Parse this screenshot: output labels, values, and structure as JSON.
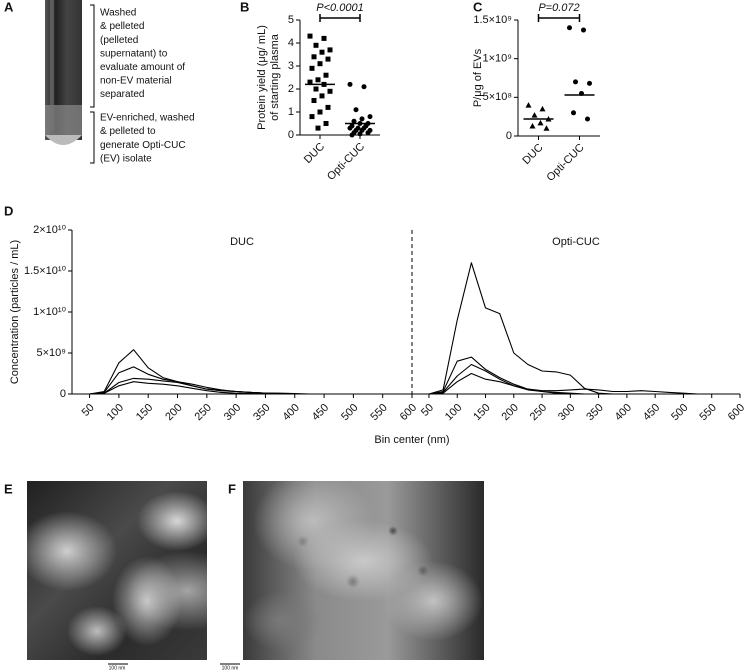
{
  "panel_labels": [
    "A",
    "B",
    "C",
    "D",
    "E",
    "F"
  ],
  "panel_a": {
    "annotations": [
      {
        "lines": [
          "Washed",
          "& pelleted",
          "(pelleted",
          "supernatant) to",
          "evaluate amount of",
          "non-EV material",
          "separated"
        ]
      },
      {
        "lines": [
          "EV-enriched, washed",
          "& pelleted to",
          "generate Opti-CUC",
          "(EV) isolate"
        ]
      }
    ]
  },
  "chart_data": [
    {
      "type": "strip",
      "y_label": [
        "Protein yield (μg/ mL)",
        "of starting plasma"
      ],
      "categories": [
        "DUC",
        "Opti-CUC"
      ],
      "values": [
        [
          4.3,
          4.2,
          3.9,
          3.7,
          3.6,
          3.4,
          3.3,
          3.1,
          2.9,
          2.6,
          2.4,
          2.3,
          2.2,
          2.0,
          1.9,
          1.7,
          1.5,
          1.2,
          1.0,
          0.8,
          0.5,
          0.3
        ],
        [
          2.2,
          2.1,
          1.1,
          0.8,
          0.7,
          0.6,
          0.5,
          0.5,
          0.4,
          0.4,
          0.3,
          0.3,
          0.3,
          0.2,
          0.2,
          0.2,
          0.1,
          0.1,
          0.05,
          0.0
        ]
      ],
      "means": [
        2.2,
        0.5
      ],
      "markers": [
        "square",
        "circle"
      ],
      "color": "#000000",
      "ylim": [
        0,
        5
      ],
      "yticks": [
        0,
        1,
        2,
        3,
        4,
        5
      ],
      "annotation": "P<0.0001"
    },
    {
      "type": "strip",
      "y_label": "P/μg of EVs",
      "categories": [
        "DUC",
        "Opti-CUC"
      ],
      "values": [
        [
          400000000.0,
          350000000.0,
          270000000.0,
          220000000.0,
          170000000.0,
          130000000.0,
          100000000.0
        ],
        [
          1400000000.0,
          1370000000.0,
          700000000.0,
          680000000.0,
          550000000.0,
          300000000.0,
          220000000.0
        ]
      ],
      "means": [
        220000000.0,
        530000000.0
      ],
      "markers": [
        "triangle",
        "circle"
      ],
      "color": "#000000",
      "ylim": [
        0,
        1500000000.0
      ],
      "yticks": [
        0,
        {
          "value": 500000000.0,
          "label": "5×10⁸"
        },
        {
          "value": 1000000000.0,
          "label": "1×10⁹"
        },
        {
          "value": 1500000000.0,
          "label": "1.5×10⁹"
        }
      ],
      "annotation": "P=0.072"
    },
    {
      "type": "line",
      "y_label": "Concentration (particles / mL)",
      "x_label": "Bin center (nm)",
      "x": [
        50,
        75,
        100,
        125,
        150,
        175,
        200,
        225,
        250,
        275,
        300,
        325,
        350,
        375,
        400,
        425,
        450,
        475,
        500,
        525,
        550,
        575,
        600
      ],
      "xlim": [
        20,
        600
      ],
      "xticks": [
        50,
        100,
        150,
        200,
        250,
        300,
        350,
        400,
        450,
        500,
        550,
        600
      ],
      "ylim": [
        0,
        20000000000.0
      ],
      "yticks": [
        0,
        {
          "value": 5000000000.0,
          "label": "5×10⁹"
        },
        {
          "value": 10000000000.0,
          "label": "1×10¹⁰"
        },
        {
          "value": 15000000000.0,
          "label": "1.5×10¹⁰"
        },
        {
          "value": 20000000000.0,
          "label": "2×10¹⁰"
        }
      ],
      "divider": "dashed",
      "color": "#000000",
      "panels": [
        {
          "title": "DUC",
          "series": [
            {
              "values": [
                0,
                300000000.0,
                3800000000.0,
                5400000000.0,
                3200000000.0,
                2000000000.0,
                1500000000.0,
                1000000000.0,
                600000000.0,
                400000000.0,
                300000000.0,
                200000000.0,
                100000000.0,
                100000000.0,
                50000000.0,
                0,
                0,
                0,
                0,
                0,
                0,
                0,
                0
              ]
            },
            {
              "values": [
                0,
                200000000.0,
                2600000000.0,
                3300000000.0,
                2400000000.0,
                1800000000.0,
                1500000000.0,
                1200000000.0,
                800000000.0,
                500000000.0,
                300000000.0,
                200000000.0,
                100000000.0,
                50000000.0,
                0,
                0,
                0,
                0,
                0,
                0,
                0,
                0,
                0
              ]
            },
            {
              "values": [
                0,
                100000000.0,
                1400000000.0,
                1900000000.0,
                1800000000.0,
                1600000000.0,
                1400000000.0,
                1000000000.0,
                600000000.0,
                400000000.0,
                300000000.0,
                200000000.0,
                100000000.0,
                50000000.0,
                0,
                0,
                0,
                0,
                0,
                0,
                0,
                0,
                0
              ]
            },
            {
              "values": [
                0,
                100000000.0,
                1000000000.0,
                1500000000.0,
                1300000000.0,
                1200000000.0,
                1000000000.0,
                700000000.0,
                400000000.0,
                200000000.0,
                100000000.0,
                50000000.0,
                0,
                0,
                0,
                0,
                0,
                0,
                0,
                0,
                0,
                0,
                0
              ]
            }
          ]
        },
        {
          "title": "Opti-CUC",
          "series": [
            {
              "values": [
                0,
                500000000.0,
                9000000000.0,
                16000000000.0,
                10500000000.0,
                9800000000.0,
                5000000000.0,
                3600000000.0,
                2800000000.0,
                2700000000.0,
                2300000000.0,
                700000000.0,
                100000000.0,
                0,
                0,
                0,
                0,
                0,
                0,
                0,
                0,
                0,
                0
              ]
            },
            {
              "values": [
                0,
                300000000.0,
                4000000000.0,
                4500000000.0,
                3000000000.0,
                2000000000.0,
                1200000000.0,
                600000000.0,
                300000000.0,
                200000000.0,
                100000000.0,
                0,
                0,
                0,
                0,
                0,
                0,
                0,
                0,
                0,
                0,
                0,
                0
              ]
            },
            {
              "values": [
                0,
                200000000.0,
                2200000000.0,
                3600000000.0,
                2800000000.0,
                1800000000.0,
                1000000000.0,
                500000000.0,
                300000000.0,
                100000000.0,
                0,
                0,
                0,
                0,
                0,
                0,
                0,
                0,
                0,
                0,
                0,
                0,
                0
              ]
            },
            {
              "values": [
                0,
                100000000.0,
                1500000000.0,
                2500000000.0,
                1800000000.0,
                1500000000.0,
                1000000000.0,
                600000000.0,
                400000000.0,
                400000000.0,
                500000000.0,
                600000000.0,
                500000000.0,
                300000000.0,
                300000000.0,
                400000000.0,
                300000000.0,
                200000000.0,
                100000000.0,
                0,
                0,
                0,
                0
              ]
            }
          ]
        }
      ]
    }
  ],
  "panel_e": {
    "scale_bar": "100 nm"
  },
  "panel_f": {
    "scale_bar": "100 nm"
  }
}
